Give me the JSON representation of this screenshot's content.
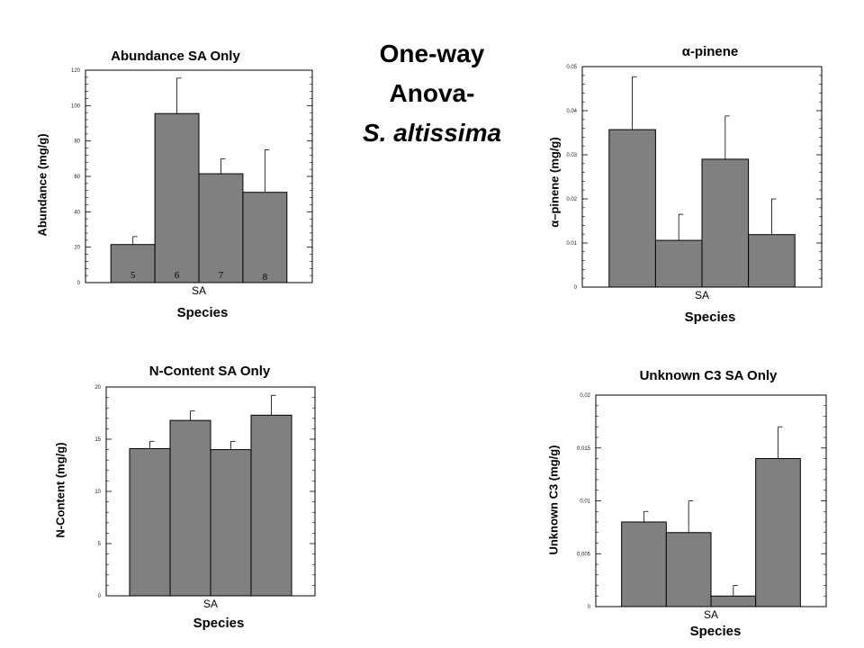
{
  "slide": {
    "title_line1": "One-way",
    "title_line2": "Anova-",
    "title_line3": "S. altissima"
  },
  "colors": {
    "bar": "#808080",
    "bar_stroke": "#000000"
  },
  "chart_data": [
    {
      "id": "abundance",
      "type": "bar",
      "title": "Abundance SA Only",
      "xlabel": "Species",
      "ylabel": "Abundance (mg/g)",
      "category": "SA",
      "ylim": [
        0,
        120
      ],
      "yticks": [
        0,
        20,
        40,
        60,
        80,
        100,
        120
      ],
      "bar_labels": [
        "5",
        "6",
        "7",
        "8"
      ],
      "values": [
        21.5,
        95.5,
        61.5,
        51
      ],
      "errors": [
        4.5,
        20,
        8.5,
        24
      ],
      "grid": false
    },
    {
      "id": "alpha-pinene",
      "type": "bar",
      "title": "α-pinene",
      "xlabel": "Species",
      "ylabel": "α–pinene (mg/g)",
      "category": "SA",
      "ylim": [
        0,
        0.05
      ],
      "yticks": [
        0,
        0.01,
        0.02,
        0.03,
        0.04,
        0.05
      ],
      "bar_labels": [],
      "values": [
        0.0357,
        0.0106,
        0.029,
        0.0119
      ],
      "errors": [
        0.012,
        0.0059,
        0.0098,
        0.0081
      ],
      "grid": false
    },
    {
      "id": "n-content",
      "type": "bar",
      "title": "N-Content SA Only",
      "xlabel": "Species",
      "ylabel": "N-Content (mg/g)",
      "category": "SA",
      "ylim": [
        0,
        20
      ],
      "yticks": [
        0,
        5,
        10,
        15,
        20
      ],
      "bar_labels": [],
      "values": [
        14.1,
        16.8,
        14,
        17.3
      ],
      "errors": [
        0.7,
        0.9,
        0.8,
        1.9
      ],
      "grid": false
    },
    {
      "id": "unknown-c3",
      "type": "bar",
      "title": "Unknown C3 SA Only",
      "xlabel": "Species",
      "ylabel": "Unknown C3 (mg/g)",
      "category": "SA",
      "ylim": [
        0,
        0.02
      ],
      "yticks": [
        0,
        0.005,
        0.01,
        0.015,
        0.02
      ],
      "bar_labels": [],
      "values": [
        0.008,
        0.007,
        0.001,
        0.014
      ],
      "errors": [
        0.001,
        0.003,
        0.001,
        0.003
      ],
      "grid": false
    }
  ]
}
